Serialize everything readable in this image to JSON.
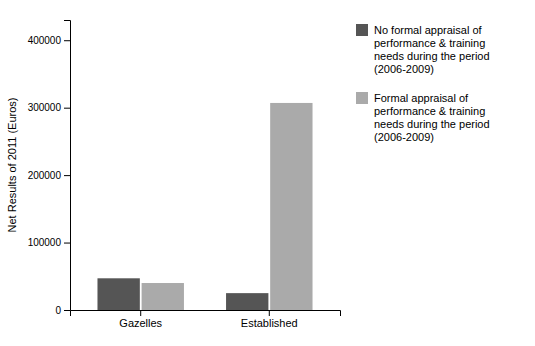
{
  "chart_data": {
    "type": "bar",
    "categories": [
      "Gazelles",
      "Established"
    ],
    "series": [
      {
        "name": "No formal appraisal of\nperformance & training\nneeds during the period\n(2006-2009)",
        "color": "#555555",
        "values": [
          47000,
          25000
        ]
      },
      {
        "name": "Formal appraisal of\nperformance & training\nneeds during the period\n(2006-2009)",
        "color": "#aaaaaa",
        "values": [
          40000,
          307000
        ]
      }
    ],
    "ylabel": "Net Results of 2011 (Euros)",
    "ylim": [
      0,
      430000
    ],
    "yticks": [
      0,
      100000,
      200000,
      300000,
      400000
    ],
    "grid": false,
    "legend": "right"
  }
}
